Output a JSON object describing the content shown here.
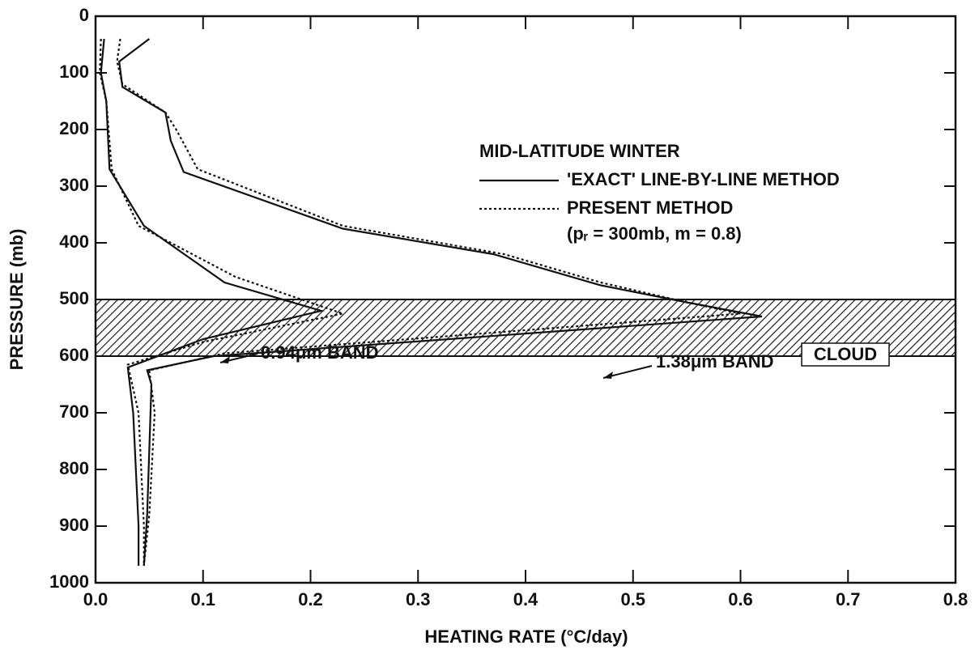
{
  "chart_data": {
    "type": "line",
    "xlabel": "HEATING RATE (°C/day)",
    "ylabel": "PRESSURE (mb)",
    "xlim": [
      0,
      0.8
    ],
    "ylim": [
      1000,
      0
    ],
    "xticks": [
      {
        "value": 0,
        "label": "0.0"
      },
      0.1,
      0.2,
      0.3,
      0.4,
      0.5,
      0.6,
      0.7,
      0.8
    ],
    "yticks": [
      0,
      100,
      200,
      300,
      400,
      500,
      600,
      700,
      800,
      900,
      1000
    ],
    "cloud": {
      "label": "CLOUD",
      "range": [
        500,
        600
      ]
    },
    "legend": {
      "title": "MID-LATITUDE WINTER",
      "entries": [
        {
          "label": "'EXACT' LINE-BY-LINE METHOD",
          "dash": "solid"
        },
        {
          "label": "PRESENT METHOD",
          "dash": "dotted",
          "note": "(pᵣ = 300mb, m = 0.8)"
        }
      ]
    },
    "annotations": [
      "0.94μm BAND",
      "1.38μm BAND"
    ],
    "series": [
      {
        "color": "#111111",
        "dash": "solid",
        "x": [
          0.008,
          0.005,
          0.01,
          0.013,
          0.045,
          0.12,
          0.21,
          0.1,
          0.03,
          0.035,
          0.04,
          0.04
        ],
        "values": [
          40,
          100,
          150,
          270,
          370,
          470,
          520,
          570,
          620,
          700,
          900,
          970
        ]
      },
      {
        "color": "#111111",
        "dash": "dotted",
        "x": [
          0.005,
          0.004,
          0.01,
          0.015,
          0.04,
          0.13,
          0.23,
          0.1,
          0.03,
          0.04,
          0.045,
          0.045
        ],
        "values": [
          40,
          100,
          150,
          270,
          370,
          460,
          525,
          575,
          615,
          700,
          900,
          970
        ]
      },
      {
        "color": "#111111",
        "dash": "solid",
        "x": [
          0.05,
          0.022,
          0.025,
          0.065,
          0.07,
          0.082,
          0.23,
          0.37,
          0.47,
          0.55,
          0.62,
          0.11,
          0.048,
          0.052,
          0.048,
          0.045
        ],
        "values": [
          40,
          80,
          125,
          170,
          220,
          275,
          375,
          420,
          475,
          505,
          530,
          600,
          625,
          650,
          880,
          970
        ]
      },
      {
        "color": "#111111",
        "dash": "dotted",
        "x": [
          0.023,
          0.02,
          0.025,
          0.065,
          0.075,
          0.095,
          0.23,
          0.38,
          0.47,
          0.55,
          0.6,
          0.12,
          0.05,
          0.055,
          0.05,
          0.045
        ],
        "values": [
          40,
          80,
          120,
          170,
          200,
          270,
          370,
          420,
          470,
          505,
          525,
          595,
          625,
          700,
          880,
          970
        ]
      }
    ]
  }
}
